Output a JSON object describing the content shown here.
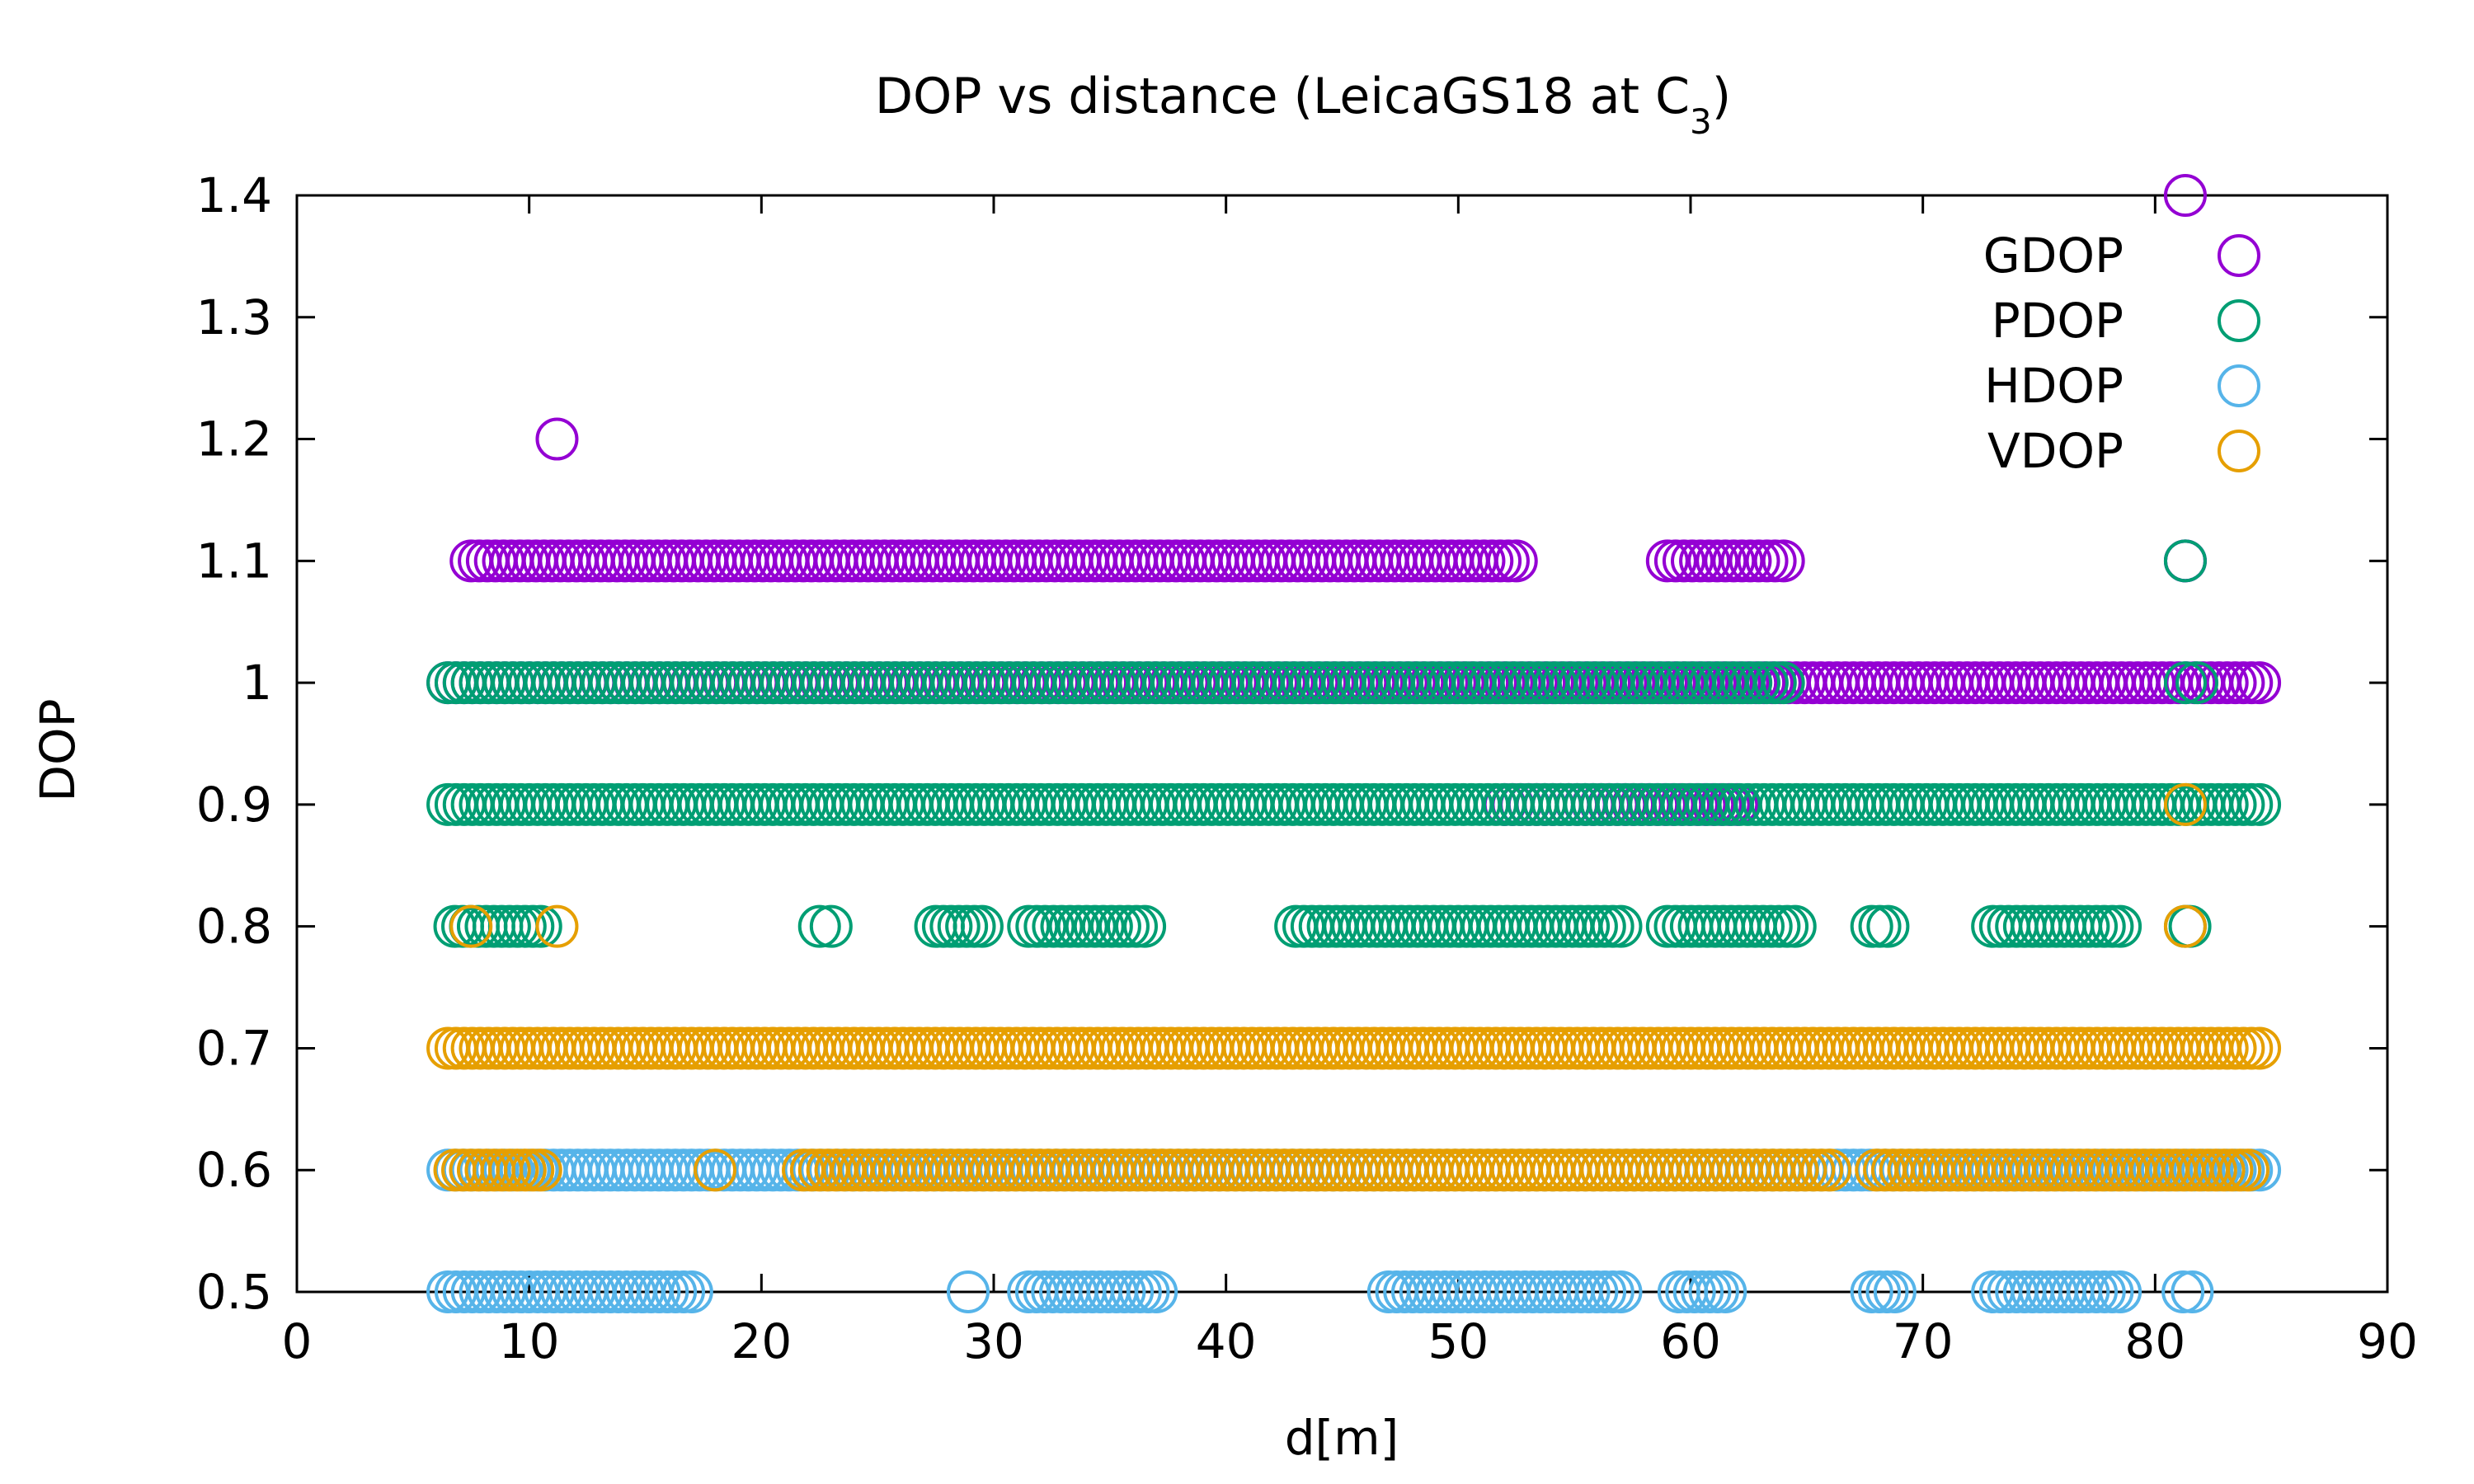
{
  "chart_data": {
    "type": "scatter",
    "title": "DOP vs distance (LeicaGS18 at C",
    "title_subscript": "3",
    "title_suffix": ")",
    "xlabel": "d[m]",
    "ylabel": "DOP",
    "xlim": [
      0,
      90
    ],
    "ylim": [
      0.5,
      1.4
    ],
    "xticks": [
      0,
      10,
      20,
      30,
      40,
      50,
      60,
      70,
      80,
      90
    ],
    "yticks": [
      0.5,
      0.6,
      0.7,
      0.8,
      0.9,
      1.0,
      1.1,
      1.2,
      1.3,
      1.4
    ],
    "ytick_labels": [
      "0.5",
      "0.6",
      "0.7",
      "0.8",
      "0.9",
      "1",
      "1.1",
      "1.2",
      "1.3",
      "1.4"
    ],
    "grid": false,
    "legend_position": "top-right",
    "series": [
      {
        "name": "GDOP",
        "color": "#9400d3",
        "segments": [
          {
            "y": 1.0,
            "x_start": 6.5,
            "x_end": 84.5
          },
          {
            "y": 1.1,
            "x_start": 7.5,
            "x_end": 52.5
          },
          {
            "y": 1.1,
            "x_start": 59.0,
            "x_end": 64.0
          },
          {
            "y": 1.1,
            "x_start": 81.3,
            "x_end": 81.3
          },
          {
            "y": 0.9,
            "x_start": 52.0,
            "x_end": 62.0
          }
        ],
        "points": [
          {
            "x": 11.2,
            "y": 1.2
          },
          {
            "x": 81.3,
            "y": 1.4
          }
        ]
      },
      {
        "name": "PDOP",
        "color": "#009e73",
        "segments": [
          {
            "y": 0.9,
            "x_start": 6.5,
            "x_end": 84.5
          },
          {
            "y": 1.0,
            "x_start": 6.5,
            "x_end": 64.0
          },
          {
            "y": 1.0,
            "x_start": 81.3,
            "x_end": 81.8
          },
          {
            "y": 0.8,
            "x_start": 6.8,
            "x_end": 10.5
          },
          {
            "y": 0.8,
            "x_start": 22.5,
            "x_end": 23.0
          },
          {
            "y": 0.8,
            "x_start": 27.5,
            "x_end": 29.5
          },
          {
            "y": 0.8,
            "x_start": 31.5,
            "x_end": 36.5
          },
          {
            "y": 0.8,
            "x_start": 43.0,
            "x_end": 57.0
          },
          {
            "y": 0.8,
            "x_start": 59.0,
            "x_end": 64.5
          },
          {
            "y": 0.8,
            "x_start": 67.8,
            "x_end": 68.5
          },
          {
            "y": 0.8,
            "x_start": 73.0,
            "x_end": 78.5
          },
          {
            "y": 0.8,
            "x_start": 81.3,
            "x_end": 81.5
          }
        ],
        "points": [
          {
            "x": 81.3,
            "y": 1.1
          }
        ]
      },
      {
        "name": "HDOP",
        "color": "#56b4e9",
        "segments": [
          {
            "y": 0.6,
            "x_start": 6.5,
            "x_end": 84.5
          },
          {
            "y": 0.5,
            "x_start": 6.5,
            "x_end": 17.0
          },
          {
            "y": 0.5,
            "x_start": 31.5,
            "x_end": 37.0
          },
          {
            "y": 0.5,
            "x_start": 47.0,
            "x_end": 57.0
          },
          {
            "y": 0.5,
            "x_start": 59.5,
            "x_end": 61.5
          },
          {
            "y": 0.5,
            "x_start": 67.8,
            "x_end": 68.8
          },
          {
            "y": 0.5,
            "x_start": 73.0,
            "x_end": 78.5
          },
          {
            "y": 0.5,
            "x_start": 81.2,
            "x_end": 81.6
          }
        ],
        "points": [
          {
            "x": 28.9,
            "y": 0.5
          }
        ]
      },
      {
        "name": "VDOP",
        "color": "#e69f00",
        "segments": [
          {
            "y": 0.7,
            "x_start": 6.5,
            "x_end": 84.5
          },
          {
            "y": 0.6,
            "x_start": 6.8,
            "x_end": 10.5
          },
          {
            "y": 0.6,
            "x_start": 21.8,
            "x_end": 66.0
          },
          {
            "y": 0.6,
            "x_start": 68.0,
            "x_end": 84.0
          }
        ],
        "points": [
          {
            "x": 7.5,
            "y": 0.8
          },
          {
            "x": 11.2,
            "y": 0.8
          },
          {
            "x": 18.0,
            "y": 0.6
          },
          {
            "x": 81.3,
            "y": 0.9
          },
          {
            "x": 81.3,
            "y": 0.8
          }
        ]
      }
    ]
  }
}
